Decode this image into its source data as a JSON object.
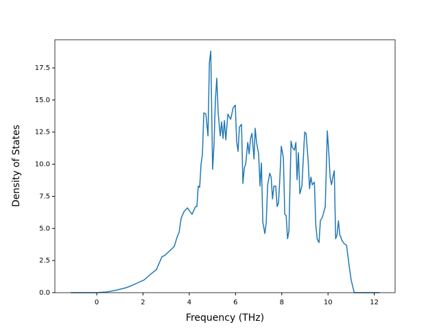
{
  "chart_data": {
    "type": "line",
    "x_label": "Frequency (THz)",
    "y_label": "Density of States",
    "x": [
      -1.13,
      0,
      0.42,
      0.86,
      1.3,
      1.69,
      2.05,
      2.34,
      2.58,
      2.7,
      2.82,
      2.94,
      3.18,
      3.35,
      3.47,
      3.56,
      3.65,
      3.77,
      3.92,
      4.12,
      4.27,
      4.33,
      4.39,
      4.45,
      4.51,
      4.57,
      4.63,
      4.72,
      4.81,
      4.87,
      4.93,
      5.01,
      5.07,
      5.13,
      5.19,
      5.25,
      5.34,
      5.4,
      5.46,
      5.52,
      5.58,
      5.67,
      5.79,
      5.9,
      5.99,
      6.05,
      6.11,
      6.17,
      6.26,
      6.32,
      6.38,
      6.44,
      6.53,
      6.59,
      6.65,
      6.71,
      6.8,
      6.85,
      6.91,
      7.0,
      7.06,
      7.12,
      7.18,
      7.27,
      7.33,
      7.39,
      7.48,
      7.54,
      7.6,
      7.66,
      7.74,
      7.8,
      7.86,
      7.92,
      7.98,
      8.07,
      8.13,
      8.19,
      8.25,
      8.31,
      8.4,
      8.46,
      8.55,
      8.61,
      8.66,
      8.72,
      8.78,
      8.87,
      8.99,
      9.05,
      9.14,
      9.2,
      9.26,
      9.32,
      9.41,
      9.47,
      9.53,
      9.61,
      9.67,
      9.76,
      9.88,
      9.97,
      10.03,
      10.09,
      10.15,
      10.21,
      10.27,
      10.33,
      10.39,
      10.45,
      10.51,
      10.62,
      10.71,
      10.8,
      10.92,
      11.0,
      11.13,
      12.23
    ],
    "series": [
      {
        "color": "#1f77b4",
        "values": [
          0,
          0,
          0.05,
          0.2,
          0.4,
          0.7,
          1.0,
          1.45,
          1.8,
          2.3,
          2.8,
          2.9,
          3.3,
          3.6,
          4.3,
          4.7,
          5.8,
          6.3,
          6.6,
          6.1,
          6.7,
          6.7,
          8.3,
          8.2,
          10.0,
          10.8,
          14.0,
          13.9,
          12.2,
          17.9,
          18.8,
          9.6,
          11.5,
          15.0,
          16.7,
          14.0,
          12.2,
          13.3,
          12.0,
          13.4,
          11.9,
          13.9,
          13.5,
          14.4,
          14.6,
          11.8,
          11.0,
          12.9,
          13.1,
          8.5,
          9.7,
          10.0,
          11.7,
          10.8,
          12.0,
          12.4,
          10.4,
          12.8,
          11.7,
          10.8,
          8.3,
          10.1,
          5.5,
          4.6,
          5.5,
          8.4,
          9.3,
          9.0,
          7.3,
          8.3,
          8.3,
          6.7,
          7.0,
          9.0,
          11.4,
          10.5,
          6.1,
          6.0,
          4.2,
          4.8,
          11.8,
          11.3,
          11.1,
          11.7,
          8.8,
          10.9,
          7.7,
          8.3,
          12.5,
          12.4,
          10.3,
          8.1,
          9.0,
          8.4,
          8.6,
          5.3,
          4.2,
          3.9,
          5.6,
          5.9,
          6.7,
          12.6,
          11.0,
          9.0,
          8.4,
          9.0,
          9.5,
          4.2,
          4.5,
          5.6,
          4.5,
          4.0,
          3.8,
          3.7,
          2.0,
          1.0,
          0,
          0
        ]
      }
    ],
    "xlim": [
      -1.81,
      12.9
    ],
    "ylim": [
      0,
      19.69
    ],
    "xticks": [
      0,
      2,
      4,
      6,
      8,
      10,
      12
    ],
    "yticks": [
      {
        "value": 0,
        "label": "0.0"
      },
      2.5,
      {
        "value": 5,
        "label": "5.0"
      },
      7.5,
      {
        "value": 10,
        "label": "10.0"
      },
      12.5,
      {
        "value": 15,
        "label": "15.0"
      },
      17.5
    ]
  }
}
